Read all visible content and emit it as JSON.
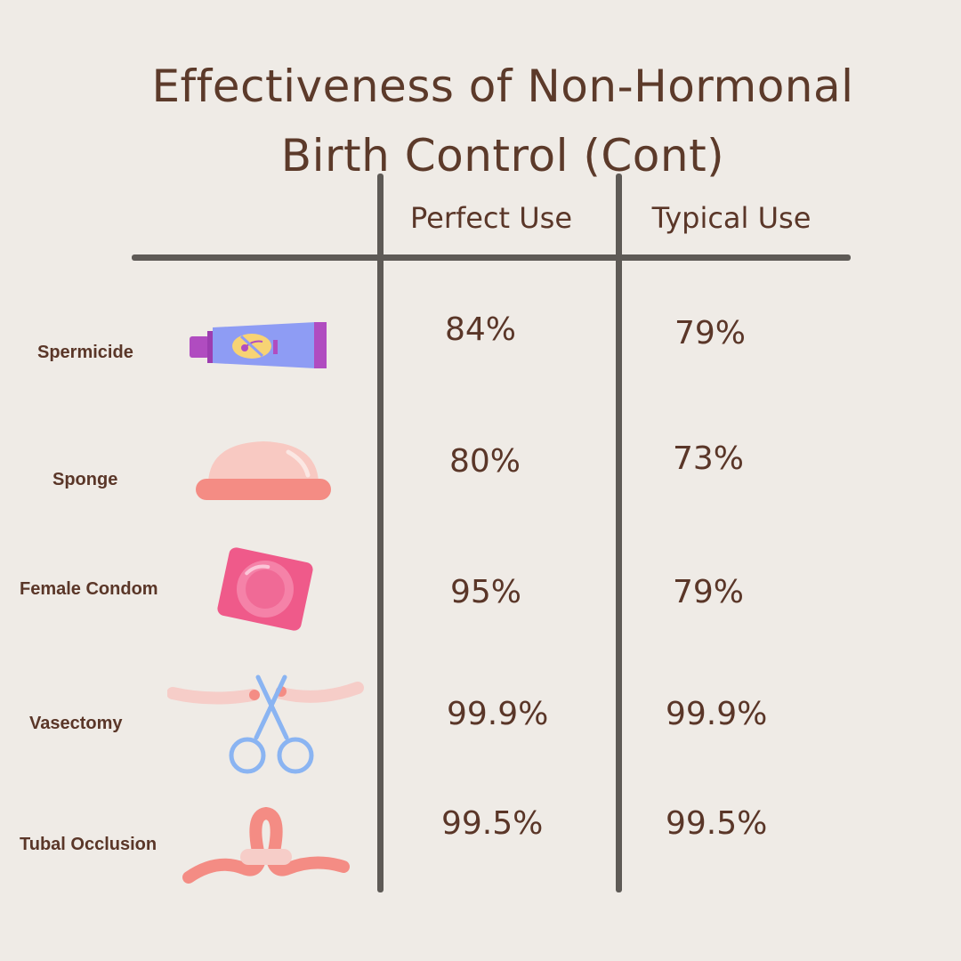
{
  "title": {
    "line1": "Effectiveness of Non-Hormonal",
    "line2": "Birth Control (Cont)"
  },
  "columns": {
    "perfect": "Perfect Use",
    "typical": "Typical Use"
  },
  "rows": [
    {
      "label": "Spermicide",
      "icon": "spermicide-tube-icon",
      "perfect": "84%",
      "typical": "79%"
    },
    {
      "label": "Sponge",
      "icon": "sponge-icon",
      "perfect": "80%",
      "typical": "73%"
    },
    {
      "label": "Female Condom",
      "icon": "female-condom-icon",
      "perfect": "95%",
      "typical": "79%"
    },
    {
      "label": "Vasectomy",
      "icon": "scissors-icon",
      "perfect": "99.9%",
      "typical": "99.9%"
    },
    {
      "label": "Tubal Occlusion",
      "icon": "tube-loop-icon",
      "perfect": "99.5%",
      "typical": "99.5%"
    }
  ],
  "colors": {
    "background": "#efebe6",
    "text": "#5a3628",
    "rule": "#5e5a56",
    "accent_pink": "#f48c84",
    "accent_blue": "#8ab4f2"
  }
}
